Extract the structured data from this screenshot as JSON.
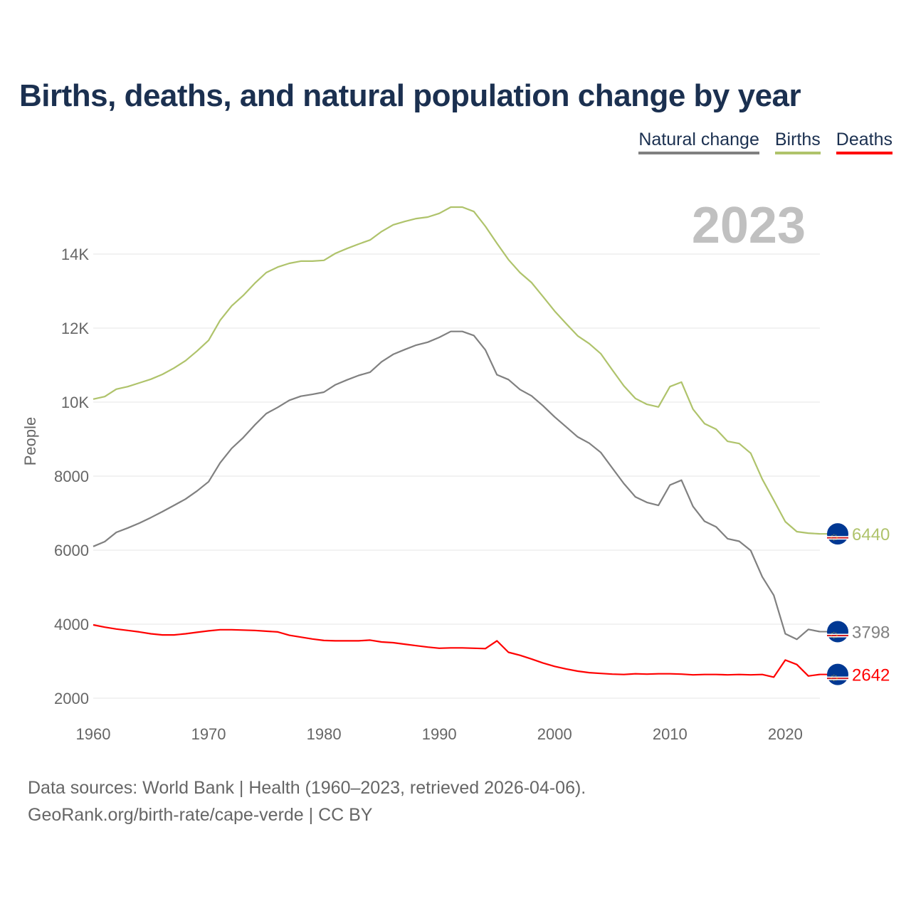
{
  "title": "Births, deaths, and natural population change by year",
  "legend": [
    {
      "label": "Natural change",
      "color": "#808080"
    },
    {
      "label": "Births",
      "color": "#afc36b"
    },
    {
      "label": "Deaths",
      "color": "#ff0000"
    }
  ],
  "source": {
    "line1": "Data sources: World Bank | Health (1960–2023, retrieved 2026-04-06).",
    "line2": "GeoRank.org/birth-rate/cape-verde | CC BY"
  },
  "chart_data": {
    "type": "line",
    "title": "Births, deaths, and natural population change by year",
    "year_label": "2023",
    "xlabel": "",
    "ylabel": "People",
    "xlim": [
      1960,
      2023
    ],
    "ylim": [
      2000,
      15500
    ],
    "grid": true,
    "legend_position": "top-right",
    "x_ticks": [
      1960,
      1970,
      1980,
      1990,
      2000,
      2010,
      2020
    ],
    "y_ticks": [
      {
        "value": 2000,
        "label": "2000"
      },
      {
        "value": 4000,
        "label": "4000"
      },
      {
        "value": 6000,
        "label": "6000"
      },
      {
        "value": 8000,
        "label": "8000"
      },
      {
        "value": 10000,
        "label": "10K"
      },
      {
        "value": 12000,
        "label": "12K"
      },
      {
        "value": 14000,
        "label": "14K"
      }
    ],
    "x_start": 1960,
    "series": [
      {
        "name": "Births",
        "color": "#afc36b",
        "end_label": "6440",
        "values": [
          10080,
          10150,
          10350,
          10420,
          10520,
          10620,
          10750,
          10920,
          11120,
          11380,
          11670,
          12210,
          12600,
          12880,
          13210,
          13500,
          13650,
          13750,
          13810,
          13810,
          13830,
          14020,
          14150,
          14270,
          14380,
          14610,
          14790,
          14880,
          14960,
          15000,
          15100,
          15270,
          15270,
          15150,
          14750,
          14290,
          13850,
          13500,
          13230,
          12850,
          12460,
          12120,
          11790,
          11580,
          11310,
          10870,
          10440,
          10100,
          9940,
          9870,
          10420,
          10540,
          9810,
          9420,
          9270,
          8940,
          8880,
          8620,
          7920,
          7350,
          6770,
          6500,
          6460,
          6440
        ]
      },
      {
        "name": "Natural change",
        "color": "#808080",
        "end_label": "3798",
        "values": [
          6100,
          6230,
          6480,
          6600,
          6730,
          6880,
          7040,
          7210,
          7380,
          7600,
          7850,
          8360,
          8750,
          9040,
          9380,
          9690,
          9860,
          10050,
          10160,
          10210,
          10270,
          10470,
          10600,
          10720,
          10810,
          11090,
          11290,
          11420,
          11540,
          11620,
          11750,
          11910,
          11910,
          11800,
          11410,
          10740,
          10610,
          10340,
          10170,
          9900,
          9600,
          9330,
          9060,
          8890,
          8640,
          8220,
          7800,
          7440,
          7290,
          7210,
          7760,
          7890,
          7180,
          6780,
          6630,
          6310,
          6240,
          5990,
          5280,
          4780,
          3740,
          3590,
          3860,
          3798
        ]
      },
      {
        "name": "Deaths",
        "color": "#ff0000",
        "end_label": "2642",
        "values": [
          3980,
          3920,
          3870,
          3830,
          3790,
          3740,
          3710,
          3710,
          3740,
          3780,
          3820,
          3850,
          3850,
          3840,
          3830,
          3810,
          3790,
          3700,
          3650,
          3600,
          3560,
          3550,
          3550,
          3550,
          3570,
          3520,
          3500,
          3460,
          3420,
          3380,
          3350,
          3360,
          3360,
          3350,
          3340,
          3550,
          3240,
          3160,
          3060,
          2950,
          2860,
          2790,
          2730,
          2690,
          2670,
          2650,
          2640,
          2660,
          2650,
          2660,
          2660,
          2650,
          2630,
          2640,
          2640,
          2630,
          2640,
          2630,
          2640,
          2570,
          3030,
          2910,
          2600,
          2642
        ]
      }
    ]
  }
}
